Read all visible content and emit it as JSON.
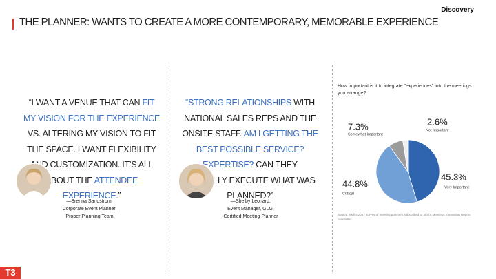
{
  "header": {
    "brand": "Discovery",
    "title": "THE PLANNER: WANTS TO CREATE A MORE CONTEMPORARY, MEMORABLE EXPERIENCE",
    "logo": "T3"
  },
  "quotes": [
    {
      "segments": [
        {
          "text": "“I WANT A VENUE THAT CAN ",
          "highlight": false
        },
        {
          "text": "FIT MY VISION FOR THE EXPERIENCE",
          "highlight": true
        },
        {
          "text": " VS. ALTERING MY VISION TO FIT THE SPACE. I WANT FLEXIBILITY AND CUSTOMIZATION. IT’S ALL ABOUT THE ",
          "highlight": false
        },
        {
          "text": "ATTENDEE EXPERIENCE",
          "highlight": true
        },
        {
          "text": ".”",
          "highlight": false
        }
      ],
      "attribution": [
        "—Brenna Sandstrom,",
        "Corporate Event Planner,",
        "Proper Planning Team"
      ]
    },
    {
      "segments": [
        {
          "text": "“STRONG RELATIONSHIPS",
          "highlight": true
        },
        {
          "text": " WITH NATIONAL SALES REPS AND THE ONSITE STAFF. ",
          "highlight": false
        },
        {
          "text": "AM I GETTING THE BEST POSSIBLE SERVICE? EXPERTISE?",
          "highlight": true
        },
        {
          "text": " CAN THEY ACTUALLY EXECUTE WHAT WAS PLANNED?”",
          "highlight": false
        }
      ],
      "attribution": [
        "—Shelby Leonard,",
        "Event Manager, GLG,",
        "Certified Meeting Planner"
      ]
    }
  ],
  "chart_data": {
    "type": "pie",
    "title": "How important is it to integrate \"experiences\" into the meetings you arrange?",
    "categories": [
      "Very Important",
      "Critical",
      "Somewhat Important",
      "Not Important"
    ],
    "values": [
      45.3,
      44.8,
      7.3,
      2.6
    ],
    "value_labels": [
      "45.3%",
      "44.8%",
      "7.3%",
      "2.6%"
    ],
    "colors": [
      "#2f64ae",
      "#70a0d6",
      "#9b9b9b",
      "#f0f0f0"
    ],
    "source": "Source: Skift's 2017 survey of meeting planners subscribed to Skift's Meetings Innovation Report newsletter"
  }
}
